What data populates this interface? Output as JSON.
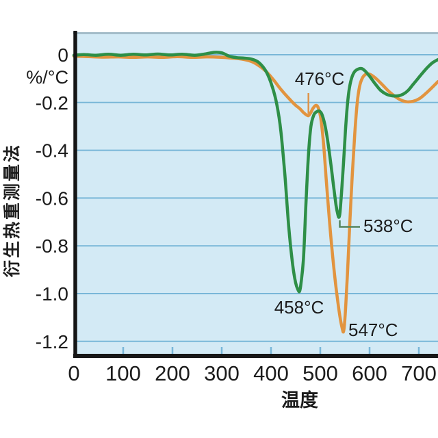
{
  "colors": {
    "plot_bg": "#d3eaf5",
    "grid": "#79b7d8",
    "plot_top_border": "#a4bdc9",
    "axis": "#161616",
    "green_series": "#2e8f47",
    "orange_series": "#e2943f",
    "green_label": "#55855e",
    "orange_label": "#de9348",
    "tick_text": "#1c1c1c"
  },
  "chart_data": {
    "type": "line",
    "title": "",
    "xlabel": "温度",
    "ylabel": "衍生热重测量法",
    "y_unit": "%/°C",
    "xlim": [
      0,
      739
    ],
    "ylim": [
      -1.25,
      0.09
    ],
    "grid": true,
    "legend": "none",
    "x_tick_values": [
      0,
      100,
      200,
      300,
      400,
      500,
      600,
      700
    ],
    "x_tick_labels": [
      "0",
      "100",
      "200",
      "300",
      "400",
      "500",
      "600",
      "700"
    ],
    "y_tick_values": [
      0,
      -0.2,
      -0.4,
      -0.6,
      -0.8,
      -1.0,
      -1.2
    ],
    "y_tick_labels": [
      "0",
      "-0.2",
      "-0.4",
      "-0.6",
      "-0.8",
      "-1.0",
      "-1.2"
    ],
    "series": [
      {
        "name": "orange-curve",
        "color_key": "orange_series",
        "points": [
          [
            0,
            -0.006
          ],
          [
            30,
            -0.008
          ],
          [
            60,
            -0.01
          ],
          [
            90,
            -0.009
          ],
          [
            120,
            -0.011
          ],
          [
            150,
            -0.009
          ],
          [
            180,
            -0.011
          ],
          [
            210,
            -0.008
          ],
          [
            240,
            -0.011
          ],
          [
            270,
            -0.009
          ],
          [
            300,
            -0.011
          ],
          [
            320,
            -0.014
          ],
          [
            340,
            -0.018
          ],
          [
            360,
            -0.028
          ],
          [
            375,
            -0.045
          ],
          [
            390,
            -0.07
          ],
          [
            405,
            -0.105
          ],
          [
            420,
            -0.145
          ],
          [
            435,
            -0.18
          ],
          [
            448,
            -0.208
          ],
          [
            458,
            -0.225
          ],
          [
            466,
            -0.242
          ],
          [
            472,
            -0.252
          ],
          [
            476,
            -0.255
          ],
          [
            480,
            -0.245
          ],
          [
            485,
            -0.225
          ],
          [
            490,
            -0.213
          ],
          [
            494,
            -0.215
          ],
          [
            498,
            -0.235
          ],
          [
            502,
            -0.28
          ],
          [
            507,
            -0.38
          ],
          [
            512,
            -0.52
          ],
          [
            518,
            -0.68
          ],
          [
            524,
            -0.82
          ],
          [
            530,
            -0.94
          ],
          [
            536,
            -1.04
          ],
          [
            541,
            -1.11
          ],
          [
            545,
            -1.15
          ],
          [
            547,
            -1.16
          ],
          [
            549,
            -1.13
          ],
          [
            552,
            -1.04
          ],
          [
            556,
            -0.88
          ],
          [
            560,
            -0.7
          ],
          [
            565,
            -0.5
          ],
          [
            570,
            -0.33
          ],
          [
            575,
            -0.2
          ],
          [
            580,
            -0.13
          ],
          [
            586,
            -0.095
          ],
          [
            592,
            -0.082
          ],
          [
            598,
            -0.08
          ],
          [
            606,
            -0.088
          ],
          [
            616,
            -0.105
          ],
          [
            628,
            -0.13
          ],
          [
            640,
            -0.155
          ],
          [
            652,
            -0.175
          ],
          [
            664,
            -0.19
          ],
          [
            676,
            -0.197
          ],
          [
            688,
            -0.195
          ],
          [
            700,
            -0.185
          ],
          [
            712,
            -0.166
          ],
          [
            724,
            -0.143
          ],
          [
            739,
            -0.112
          ]
        ]
      },
      {
        "name": "green-curve",
        "color_key": "green_series",
        "points": [
          [
            0,
            -0.002
          ],
          [
            20,
            0.001
          ],
          [
            45,
            -0.002
          ],
          [
            70,
            0.002
          ],
          [
            95,
            -0.002
          ],
          [
            120,
            0.002
          ],
          [
            145,
            -0.001
          ],
          [
            170,
            0.003
          ],
          [
            195,
            -0.001
          ],
          [
            220,
            0.002
          ],
          [
            245,
            -0.002
          ],
          [
            265,
            0.003
          ],
          [
            285,
            0.01
          ],
          [
            300,
            0.008
          ],
          [
            315,
            -0.006
          ],
          [
            330,
            -0.012
          ],
          [
            345,
            -0.014
          ],
          [
            360,
            -0.018
          ],
          [
            375,
            -0.032
          ],
          [
            390,
            -0.07
          ],
          [
            402,
            -0.13
          ],
          [
            412,
            -0.21
          ],
          [
            420,
            -0.32
          ],
          [
            428,
            -0.5
          ],
          [
            436,
            -0.72
          ],
          [
            444,
            -0.88
          ],
          [
            450,
            -0.955
          ],
          [
            455,
            -0.985
          ],
          [
            458,
            -0.99
          ],
          [
            461,
            -0.955
          ],
          [
            466,
            -0.85
          ],
          [
            471,
            -0.62
          ],
          [
            476,
            -0.42
          ],
          [
            481,
            -0.3
          ],
          [
            487,
            -0.252
          ],
          [
            493,
            -0.238
          ],
          [
            498,
            -0.236
          ],
          [
            503,
            -0.248
          ],
          [
            509,
            -0.29
          ],
          [
            515,
            -0.36
          ],
          [
            521,
            -0.45
          ],
          [
            527,
            -0.55
          ],
          [
            532,
            -0.63
          ],
          [
            536,
            -0.672
          ],
          [
            538,
            -0.68
          ],
          [
            540,
            -0.66
          ],
          [
            543,
            -0.58
          ],
          [
            547,
            -0.46
          ],
          [
            551,
            -0.32
          ],
          [
            555,
            -0.21
          ],
          [
            559,
            -0.14
          ],
          [
            564,
            -0.095
          ],
          [
            570,
            -0.07
          ],
          [
            577,
            -0.06
          ],
          [
            584,
            -0.058
          ],
          [
            591,
            -0.068
          ],
          [
            600,
            -0.09
          ],
          [
            610,
            -0.118
          ],
          [
            622,
            -0.148
          ],
          [
            634,
            -0.165
          ],
          [
            646,
            -0.172
          ],
          [
            658,
            -0.172
          ],
          [
            668,
            -0.165
          ],
          [
            678,
            -0.15
          ],
          [
            688,
            -0.125
          ],
          [
            698,
            -0.1
          ],
          [
            708,
            -0.075
          ],
          [
            718,
            -0.052
          ],
          [
            728,
            -0.033
          ],
          [
            739,
            -0.02
          ]
        ]
      }
    ],
    "annotations": [
      {
        "text": "476°C",
        "series": "orange-curve",
        "temp": 476,
        "value": -0.255,
        "color_key": "orange_label"
      },
      {
        "text": "458°C",
        "series": "green-curve",
        "temp": 458,
        "value": -0.99,
        "color_key": "green_label"
      },
      {
        "text": "538°C",
        "series": "green-curve",
        "temp": 538,
        "value": -0.68,
        "color_key": "green_label"
      },
      {
        "text": "547°C",
        "series": "orange-curve",
        "temp": 547,
        "value": -1.16,
        "color_key": "orange_label"
      }
    ]
  }
}
